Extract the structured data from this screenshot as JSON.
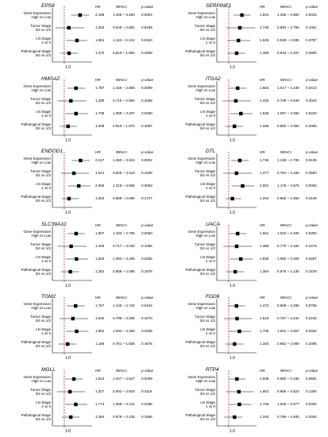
{
  "axis_label": "1.0",
  "headers": {
    "hr": "HR",
    "ci": "95%CI",
    "p": "p-value"
  },
  "colors": {
    "ref_line": "#d62728",
    "marker": "#000000"
  },
  "panels": [
    {
      "gene": "EPS8",
      "rows": [
        {
          "label1": "Gene Expression",
          "label2": "High vs Low",
          "hr": "2.189",
          "ci": "1.406 ~ 3.490",
          "p": "0.0004",
          "hr_v": 2.189,
          "lo": 1.406,
          "hi": 3.49
        },
        {
          "label1": "Tumor Stage",
          "label2": "3/4 vs 1/2",
          "hr": "1.253",
          "ci": "0.649 ~ 2.681",
          "p": "0.5198",
          "hr_v": 1.253,
          "lo": 0.649,
          "hi": 2.681
        },
        {
          "label1": "LN Stage",
          "label2": "1 vs 0",
          "hr": "1.881",
          "ci": "1.119 ~ 3.134",
          "p": "0.0160",
          "hr_v": 1.881,
          "lo": 1.119,
          "hi": 3.134
        },
        {
          "label1": "Pathological Stage",
          "label2": "3/4 vs 1/2",
          "hr": "1.270",
          "ci": "0.810 ~ 1.952",
          "p": "0.2908",
          "hr_v": 1.27,
          "lo": 0.81,
          "hi": 1.952
        }
      ]
    },
    {
      "gene": "SERPINE1",
      "rows": [
        {
          "label1": "Gene Expression",
          "label2": "High vs Low",
          "hr": "1.934",
          "ci": "1.265 ~ 2.984",
          "p": "0.0023",
          "hr_v": 1.934,
          "lo": 1.265,
          "hi": 2.984
        },
        {
          "label1": "Tumor Stage",
          "label2": "3/4 vs 1/2",
          "hr": "1.745",
          "ci": "0.894 ~ 3.758",
          "p": "0.1061",
          "hr_v": 1.745,
          "lo": 0.894,
          "hi": 3.758
        },
        {
          "label1": "LN Stage",
          "label2": "1 vs 0",
          "hr": "1.625",
          "ci": "0.948 ~ 2.935",
          "p": "0.0787",
          "hr_v": 1.625,
          "lo": 0.948,
          "hi": 2.935
        },
        {
          "label1": "Pathological Stage",
          "label2": "3/4 vs 1/2",
          "hr": "1.489",
          "ci": "0.943 ~ 2.297",
          "p": "0.0860",
          "hr_v": 1.489,
          "lo": 0.943,
          "hi": 2.297
        }
      ]
    },
    {
      "gene": "HMGA2",
      "rows": [
        {
          "label1": "Gene Expression",
          "label2": "High vs Low",
          "hr": "1.787",
          "ci": "1.155 ~ 2.806",
          "p": "0.0089",
          "hr_v": 1.787,
          "lo": 1.155,
          "hi": 2.806
        },
        {
          "label1": "Tumor Stage",
          "label2": "3/4 vs 1/2",
          "hr": "1.390",
          "ci": "0.715 ~ 2.984",
          "p": "0.3466",
          "hr_v": 1.39,
          "lo": 0.715,
          "hi": 2.984
        },
        {
          "label1": "LN Stage",
          "label2": "1 vs 0",
          "hr": "1.795",
          "ci": "1.059 ~ 3.207",
          "p": "0.0290",
          "hr_v": 1.795,
          "lo": 1.059,
          "hi": 3.207
        },
        {
          "label1": "Pathological Stage",
          "label2": "3/4 vs 1/2",
          "hr": "1.208",
          "ci": "0.810 ~ 1.870",
          "p": "0.4087",
          "hr_v": 1.208,
          "lo": 0.81,
          "hi": 1.87
        }
      ]
    },
    {
      "gene": "ITGA2",
      "rows": [
        {
          "label1": "Gene Expression",
          "label2": "High vs Low",
          "hr": "1.563",
          "ci": "1.017 ~ 2.439",
          "p": "0.0414",
          "hr_v": 1.563,
          "lo": 1.017,
          "hi": 2.439
        },
        {
          "label1": "Tumor Stage",
          "label2": "3/4 vs 1/2",
          "hr": "1.426",
          "ci": "0.739 ~ 3.048",
          "p": "0.3043",
          "hr_v": 1.426,
          "lo": 0.739,
          "hi": 3.048
        },
        {
          "label1": "LN Stage",
          "label2": "1 vs 0",
          "hr": "1.835",
          "ci": "1.087 ~ 3.265",
          "p": "0.0220",
          "hr_v": 1.835,
          "lo": 1.087,
          "hi": 3.265
        },
        {
          "label1": "Pathological Stage",
          "label2": "3/4 vs 1/2",
          "hr": "1.335",
          "ci": "0.850 ~ 2.056",
          "p": "0.2050",
          "hr_v": 1.335,
          "lo": 0.85,
          "hi": 2.056
        }
      ]
    },
    {
      "gene": "ENDOD1",
      "rows": [
        {
          "label1": "Gene Expression",
          "label2": "High vs Low",
          "hr": "2.247",
          "ci": "1.460 ~ 3.515",
          "p": "0.0002",
          "hr_v": 2.247,
          "lo": 1.46,
          "hi": 3.515
        },
        {
          "label1": "Tumor Stage",
          "label2": "3/4 vs 1/2",
          "hr": "1.614",
          "ci": "0.845 ~ 3.419",
          "p": "0.1538",
          "hr_v": 1.614,
          "lo": 0.845,
          "hi": 3.419
        },
        {
          "label1": "LN Stage",
          "label2": "1 vs 0",
          "hr": "2.055",
          "ci": "1.216 ~ 3.656",
          "p": "0.0063",
          "hr_v": 2.055,
          "lo": 1.216,
          "hi": 3.656
        },
        {
          "label1": "Pathological Stage",
          "label2": "3/4 vs 1/2",
          "hr": "1.264",
          "ci": "0.869 ~ 2.099",
          "p": "0.1727",
          "hr_v": 1.264,
          "lo": 0.869,
          "hi": 2.099
        }
      ]
    },
    {
      "gene": "DTL",
      "rows": [
        {
          "label1": "Gene Expression",
          "label2": "High vs Low",
          "hr": "1.745",
          "ci": "1.138 ~ 2.706",
          "p": "0.0105",
          "hr_v": 1.745,
          "lo": 1.138,
          "hi": 2.706
        },
        {
          "label1": "Tumor Stage",
          "label2": "3/4 vs 1/2",
          "hr": "1.477",
          "ci": "0.764 ~ 3.156",
          "p": "0.2583",
          "hr_v": 1.477,
          "lo": 0.764,
          "hi": 3.156
        },
        {
          "label1": "LN Stage",
          "label2": "1 vs 0",
          "hr": "2.001",
          "ci": "1.178 ~ 3.576",
          "p": "0.0092",
          "hr_v": 2.001,
          "lo": 1.178,
          "hi": 3.576
        },
        {
          "label1": "Pathological Stage",
          "label2": "3/4 vs 1/2",
          "hr": "1.204",
          "ci": "0.865 ~ 1.850",
          "p": "0.4148",
          "hr_v": 1.204,
          "lo": 0.865,
          "hi": 1.85
        }
      ]
    },
    {
      "gene": "SLC39A10",
      "rows": [
        {
          "label1": "Gene Expression",
          "label2": "High vs Low",
          "hr": "1.807",
          "ci": "1.183 ~ 2.795",
          "p": "0.0060",
          "hr_v": 1.807,
          "lo": 1.183,
          "hi": 2.795
        },
        {
          "label1": "Tumor Stage",
          "label2": "3/4 vs 1/2",
          "hr": "1.405",
          "ci": "0.717 ~ 3.030",
          "p": "0.3356",
          "hr_v": 1.405,
          "lo": 0.717,
          "hi": 3.03
        },
        {
          "label1": "LN Stage",
          "label2": "1 vs 0",
          "hr": "1.833",
          "ci": "1.083 ~ 3.285",
          "p": "0.0256",
          "hr_v": 1.833,
          "lo": 1.083,
          "hi": 3.285
        },
        {
          "label1": "Pathological Stage",
          "label2": "3/4 vs 1/2",
          "hr": "1.352",
          "ci": "0.859 ~ 2.085",
          "p": "0.1876",
          "hr_v": 1.352,
          "lo": 0.859,
          "hi": 2.085
        }
      ]
    },
    {
      "gene": "UACA",
      "rows": [
        {
          "label1": "Gene Expression",
          "label2": "High vs Low",
          "hr": "1.561",
          "ci": "1.022 ~ 2.405",
          "p": "0.0393",
          "hr_v": 1.561,
          "lo": 1.022,
          "hi": 2.405
        },
        {
          "label1": "Tumor Stage",
          "label2": "3/4 vs 1/2",
          "hr": "1.489",
          "ci": "0.770 ~ 3.184",
          "p": "0.2479",
          "hr_v": 1.489,
          "lo": 0.77,
          "hi": 3.184
        },
        {
          "label1": "LN Stage",
          "label2": "1 vs 0",
          "hr": "1.826",
          "ci": "1.082 ~ 3.328",
          "p": "0.0287",
          "hr_v": 1.826,
          "lo": 1.082,
          "hi": 3.328
        },
        {
          "label1": "Pathological Stage",
          "label2": "3/4 vs 1/2",
          "hr": "1.384",
          "ci": "0.878 ~ 2.138",
          "p": "0.1578",
          "hr_v": 1.384,
          "lo": 0.878,
          "hi": 2.138
        }
      ]
    },
    {
      "gene": "TGM2",
      "rows": [
        {
          "label1": "Gene Expression",
          "label2": "High vs Low",
          "hr": "1.757",
          "ci": "1.140 ~ 2.742",
          "p": "0.0104",
          "hr_v": 1.757,
          "lo": 1.14,
          "hi": 2.742
        },
        {
          "label1": "Tumor Stage",
          "label2": "3/4 vs 1/2",
          "hr": "1.540",
          "ci": "0.788 ~ 3.285",
          "p": "0.2070",
          "hr_v": 1.54,
          "lo": 0.788,
          "hi": 3.285
        },
        {
          "label1": "LN Stage",
          "label2": "1 vs 0",
          "hr": "1.852",
          "ci": "1.094 ~ 3.306",
          "p": "0.0208",
          "hr_v": 1.852,
          "lo": 1.094,
          "hi": 3.306
        },
        {
          "label1": "Pathological Stage",
          "label2": "3/4 vs 1/2",
          "hr": "1.185",
          "ci": "0.751 ~ 1.835",
          "p": "0.4575",
          "hr_v": 1.185,
          "lo": 0.751,
          "hi": 1.835
        }
      ]
    },
    {
      "gene": "FGD6",
      "rows": [
        {
          "label1": "Gene Expression",
          "label2": "High vs Low",
          "hr": "1.473",
          "ci": "0.959 ~ 2.286",
          "p": "0.0766",
          "hr_v": 1.473,
          "lo": 0.959,
          "hi": 2.286
        },
        {
          "label1": "Tumor Stage",
          "label2": "3/4 vs 1/2",
          "hr": "1.516",
          "ci": "0.787 ~ 3.234",
          "p": "0.2240",
          "hr_v": 1.516,
          "lo": 0.787,
          "hi": 3.234
        },
        {
          "label1": "LN Stage",
          "label2": "1 vs 0",
          "hr": "1.706",
          "ci": "1.001 ~ 3.067",
          "p": "0.0492",
          "hr_v": 1.706,
          "lo": 1.001,
          "hi": 3.067
        },
        {
          "label1": "Pathological Stage",
          "label2": "3/4 vs 1/2",
          "hr": "1.340",
          "ci": "0.852 ~ 2.069",
          "p": "0.2005",
          "hr_v": 1.34,
          "lo": 0.852,
          "hi": 2.069
        }
      ]
    },
    {
      "gene": "MGLL",
      "rows": [
        {
          "label1": "Gene Expression",
          "label2": "High vs Low",
          "hr": "1.613",
          "ci": "1.047 ~ 2.527",
          "p": "0.0299",
          "hr_v": 1.613,
          "lo": 1.047,
          "hi": 2.527
        },
        {
          "label1": "Tumor Stage",
          "label2": "3/4 vs 1/2",
          "hr": "1.327",
          "ci": "0.692 ~ 2.824",
          "p": "0.4119",
          "hr_v": 1.327,
          "lo": 0.692,
          "hi": 2.824
        },
        {
          "label1": "LN Stage",
          "label2": "1 vs 0",
          "hr": "1.774",
          "ci": "1.059 ~ 3.131",
          "p": "0.0286",
          "hr_v": 1.774,
          "lo": 1.059,
          "hi": 3.131
        },
        {
          "label1": "Pathological Stage",
          "label2": "3/4 vs 1/2",
          "hr": "1.384",
          "ci": "0.879 ~ 2.135",
          "p": "0.1566",
          "hr_v": 1.384,
          "lo": 0.879,
          "hi": 2.135
        }
      ]
    },
    {
      "gene": "RTP4",
      "rows": [
        {
          "label1": "Gene Expression",
          "label2": "High vs Low",
          "hr": "1.508",
          "ci": "0.982 ~ 2.336",
          "p": "0.0601",
          "hr_v": 1.508,
          "lo": 0.982,
          "hi": 2.336
        },
        {
          "label1": "Tumor Stage",
          "label2": "3/4 vs 1/2",
          "hr": "1.662",
          "ci": "0.866 ~ 3.523",
          "p": "0.1305",
          "hr_v": 1.662,
          "lo": 0.866,
          "hi": 3.523
        },
        {
          "label1": "LN Stage",
          "label2": "1 vs 0",
          "hr": "1.706",
          "ci": "1.025 ~ 3.077",
          "p": "0.0394",
          "hr_v": 1.706,
          "lo": 1.025,
          "hi": 3.077
        },
        {
          "label1": "Pathological Stage",
          "label2": "3/4 vs 1/2",
          "hr": "1.340",
          "ci": "0.789 ~ 1.945",
          "p": "0.3340",
          "hr_v": 1.34,
          "lo": 0.789,
          "hi": 1.945
        }
      ]
    }
  ]
}
